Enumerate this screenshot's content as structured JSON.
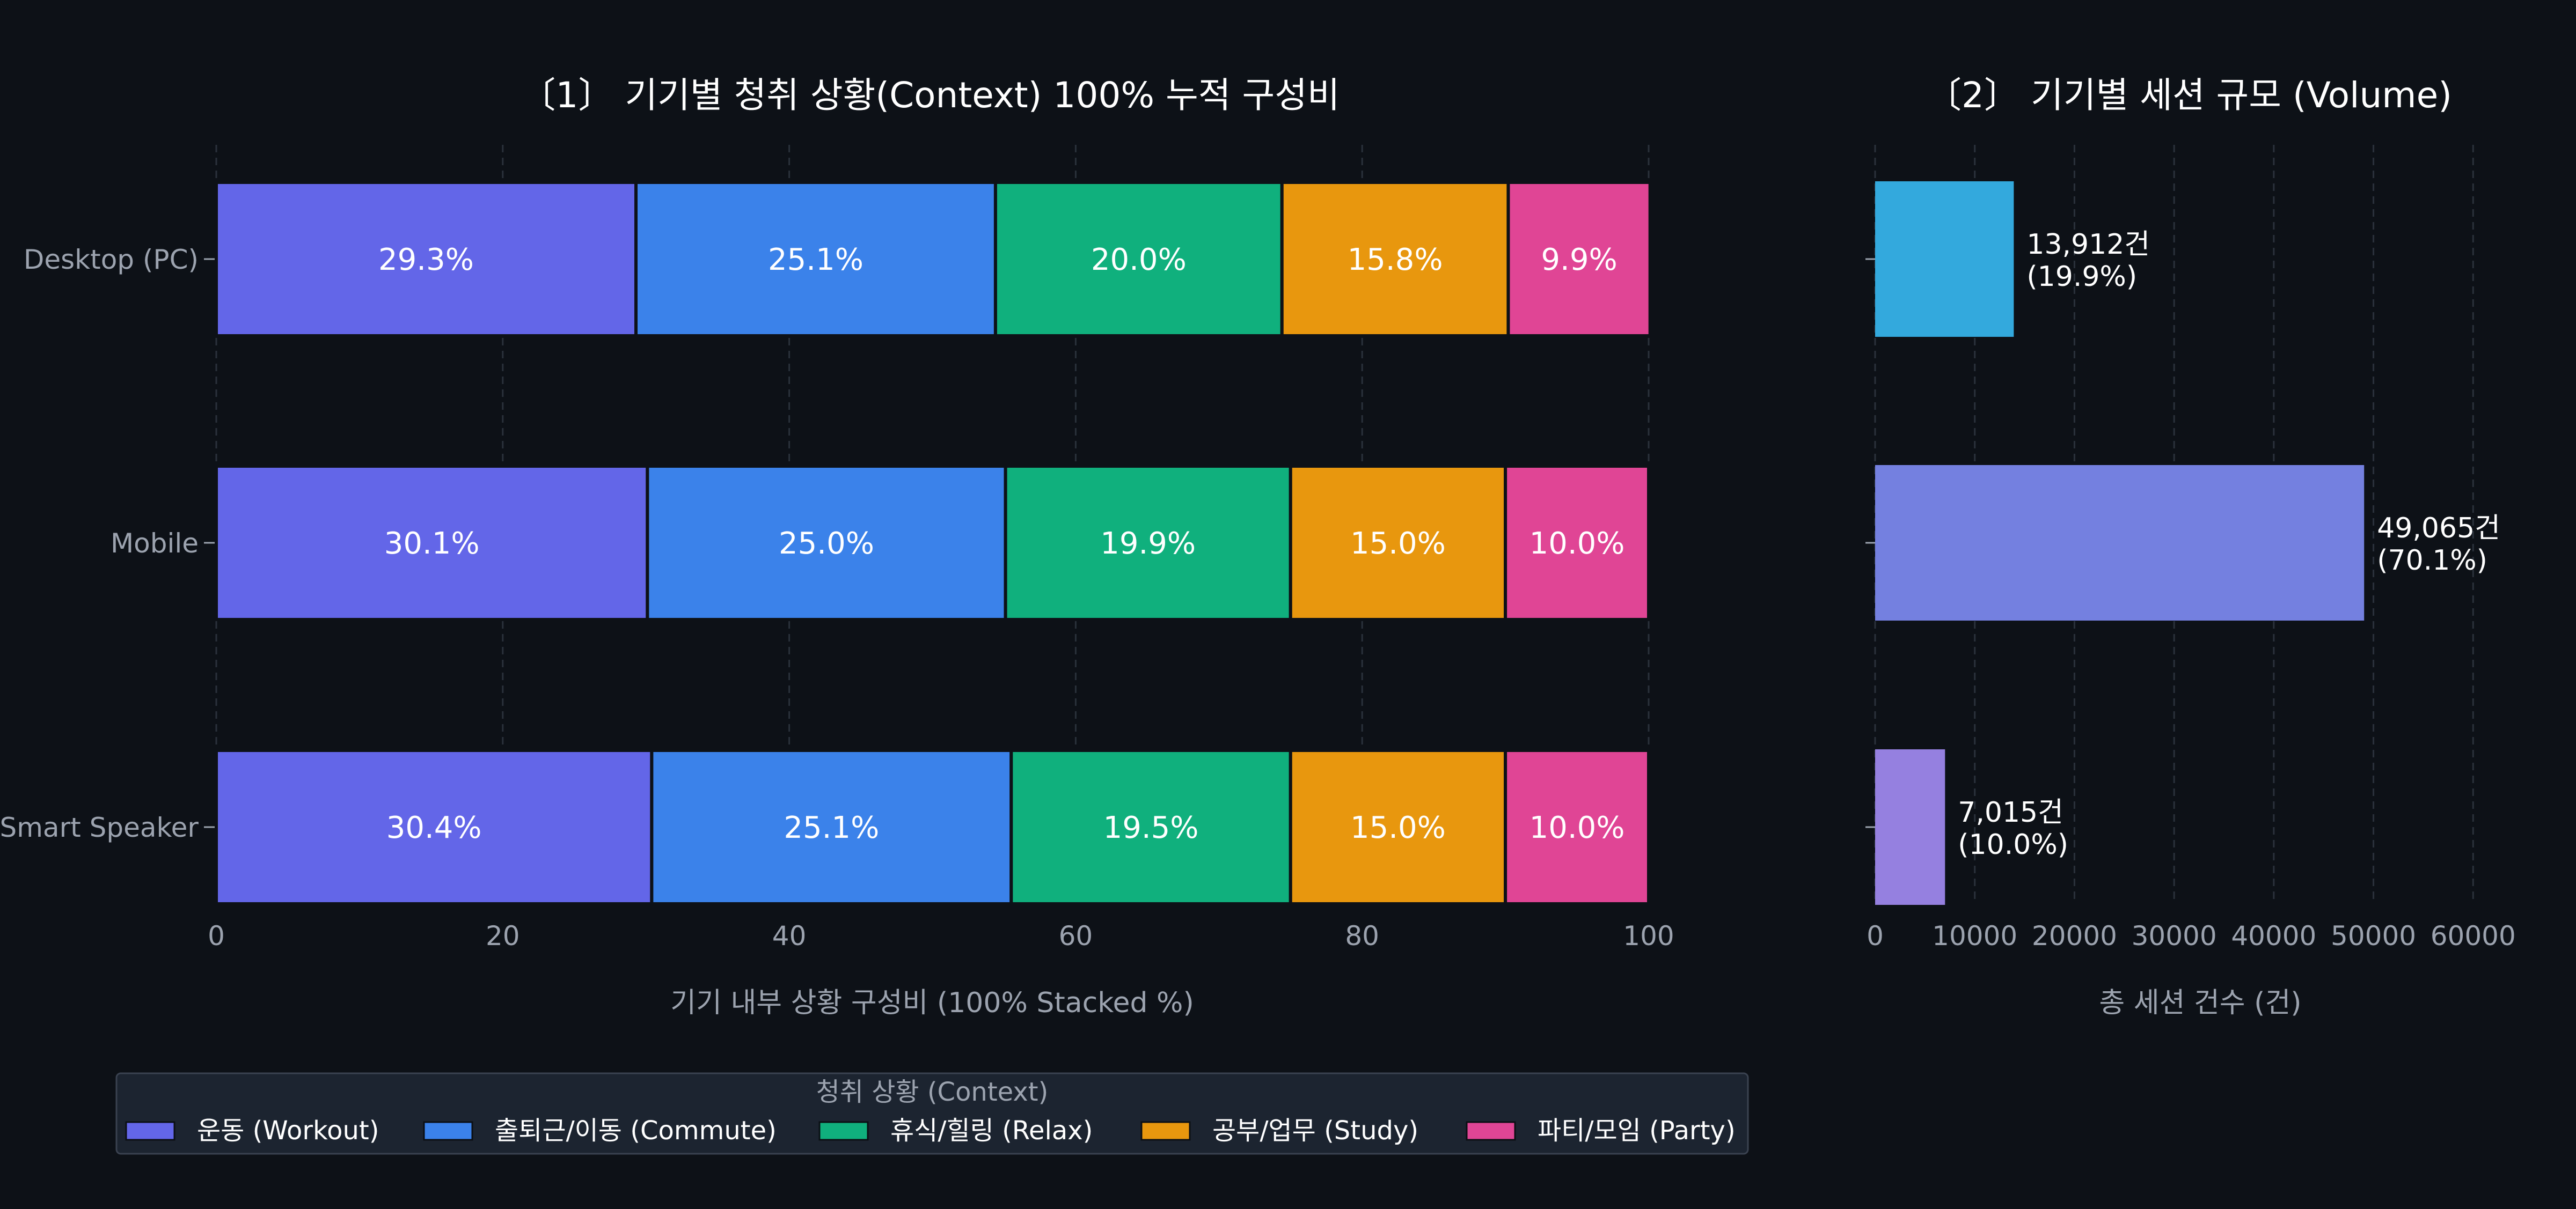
{
  "colors": {
    "background": "#0d1117",
    "title_text": "#ffffff",
    "tick_text": "#9ca3af",
    "label_text": "#9ca3af",
    "grid": "#2a313b",
    "legend_bg": "#1c2430",
    "legend_border": "#3a4250"
  },
  "chart_data": [
    {
      "type": "bar",
      "orientation": "horizontal",
      "stacked": true,
      "title": "〔1〕 기기별 청취 상황(Context) 100% 누적 구성비",
      "xlabel": "기기 내부 상황 구성비 (100% Stacked %)",
      "ylabel": "",
      "xlim": [
        0,
        100
      ],
      "xticks": [
        "0",
        "20",
        "40",
        "60",
        "80",
        "100"
      ],
      "grid": "vertical dashed",
      "categories": [
        "Desktop (PC)",
        "Mobile",
        "Smart Speaker"
      ],
      "series": [
        {
          "name": "운동 (Workout)",
          "color": "#6366e8",
          "values": [
            29.3,
            30.1,
            30.4
          ],
          "labels": [
            "29.3%",
            "30.1%",
            "30.4%"
          ]
        },
        {
          "name": "출퇴근/이동 (Commute)",
          "color": "#3b82ea",
          "values": [
            25.1,
            25.0,
            25.1
          ],
          "labels": [
            "25.1%",
            "25.0%",
            "25.1%"
          ]
        },
        {
          "name": "휴식/힐링 (Relax)",
          "color": "#10b07d",
          "values": [
            20.0,
            19.9,
            19.5
          ],
          "labels": [
            "20.0%",
            "19.9%",
            "19.5%"
          ]
        },
        {
          "name": "공부/업무 (Study)",
          "color": "#e8970e",
          "values": [
            15.8,
            15.0,
            15.0
          ],
          "labels": [
            "15.8%",
            "15.0%",
            "15.0%"
          ]
        },
        {
          "name": "파티/모임 (Party)",
          "color": "#e04595",
          "values": [
            9.9,
            10.0,
            10.0
          ],
          "labels": [
            "9.9%",
            "10.0%",
            "10.0%"
          ]
        }
      ],
      "legend": {
        "title": "청취 상황 (Context)",
        "placement": "bottom"
      }
    },
    {
      "type": "bar",
      "orientation": "horizontal",
      "title": "〔2〕 기기별 세션 규모 (Volume)",
      "xlabel": "총 세션 건수 (건)",
      "ylabel": "",
      "xlim": [
        0,
        63000
      ],
      "xticks": [
        "0",
        "10000",
        "20000",
        "30000",
        "40000",
        "50000",
        "60000"
      ],
      "grid": "vertical dashed",
      "categories": [
        "Desktop (PC)",
        "Mobile",
        "Smart Speaker"
      ],
      "values": [
        13912,
        49065,
        7015
      ],
      "colors": [
        "#33a9dd",
        "#7480e0",
        "#9580e0"
      ],
      "data_labels": [
        [
          "13,912건",
          "(19.9%)"
        ],
        [
          "49,065건",
          "(70.1%)"
        ],
        [
          "7,015건",
          "(10.0%)"
        ]
      ]
    }
  ]
}
